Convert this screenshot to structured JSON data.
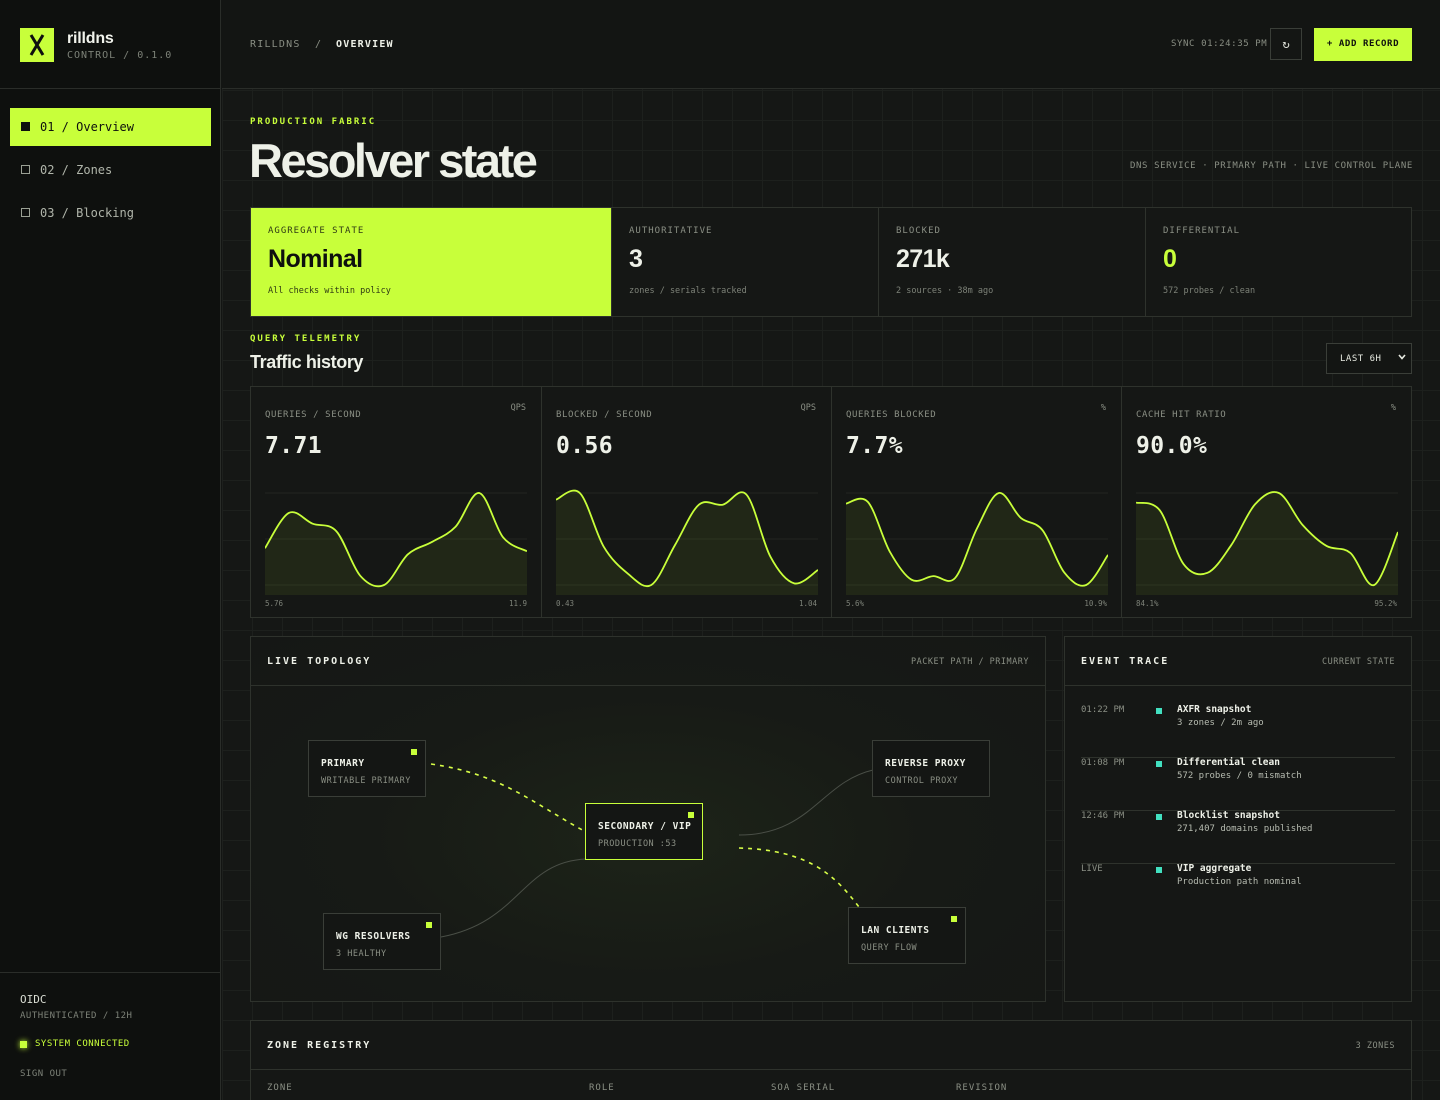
{
  "brand": {
    "name": "rilldns",
    "sub": "CONTROL / 0.1.0"
  },
  "nav": [
    {
      "label": "01 / Overview",
      "active": true
    },
    {
      "label": "02 / Zones",
      "active": false
    },
    {
      "label": "03 / Blocking",
      "active": false
    }
  ],
  "session": {
    "provider": "OIDC",
    "auth": "AUTHENTICATED / 12H",
    "status": "SYSTEM CONNECTED",
    "signout": "SIGN OUT"
  },
  "topbar": {
    "crumbs": [
      "RILLDNS",
      "/",
      "OVERVIEW"
    ],
    "sync": "SYNC 01:24:35 PM",
    "refresh_icon": "↻",
    "add_label": "+ ADD RECORD"
  },
  "header": {
    "eyebrow": "PRODUCTION FABRIC",
    "title": "Resolver state",
    "subtitle": "DNS SERVICE · PRIMARY PATH · LIVE CONTROL PLANE"
  },
  "stats": [
    {
      "label": "AGGREGATE STATE",
      "value": "Nominal",
      "note": "All checks within policy"
    },
    {
      "label": "AUTHORITATIVE",
      "value": "3",
      "note": "zones / serials tracked"
    },
    {
      "label": "BLOCKED",
      "value": "271k",
      "note": "2 sources · 38m ago"
    },
    {
      "label": "DIFFERENTIAL",
      "value": "0",
      "note": "572 probes / clean"
    }
  ],
  "telemetry": {
    "eyebrow": "QUERY TELEMETRY",
    "title": "Traffic history",
    "range": "LAST 6H",
    "panels": [
      {
        "label": "QUERIES / SECOND",
        "unit": "QPS",
        "value": "7.71",
        "min": "5.76",
        "max": "11.9",
        "series": [
          8.3,
          10.6,
          9.9,
          9.4,
          6.5,
          5.9,
          7.9,
          8.7,
          9.7,
          11.9,
          9.0,
          8.1
        ]
      },
      {
        "label": "BLOCKED / SECOND",
        "unit": "QPS",
        "value": "0.56",
        "min": "0.43",
        "max": "1.04",
        "series": [
          0.96,
          1.0,
          0.68,
          0.52,
          0.45,
          0.69,
          0.93,
          0.93,
          0.99,
          0.62,
          0.46,
          0.54
        ]
      },
      {
        "label": "QUERIES BLOCKED",
        "unit": "%",
        "value": "7.7%",
        "min": "5.6%",
        "max": "10.9%",
        "series": [
          10.3,
          10.4,
          7.6,
          6.0,
          6.2,
          6.1,
          8.9,
          10.9,
          9.5,
          8.8,
          6.4,
          5.7,
          7.4
        ]
      },
      {
        "label": "CACHE HIT RATIO",
        "unit": "%",
        "value": "90.0%",
        "min": "84.1%",
        "max": "95.2%",
        "series": [
          94.1,
          93.2,
          87.0,
          86.0,
          89.2,
          93.9,
          95.2,
          91.5,
          89.1,
          88.3,
          84.6,
          90.7
        ]
      }
    ]
  },
  "topology": {
    "title": "LIVE TOPOLOGY",
    "meta": "PACKET PATH / PRIMARY",
    "nodes": [
      {
        "title": "PRIMARY",
        "sub": "WRITABLE PRIMARY"
      },
      {
        "title": "SECONDARY / VIP",
        "sub": "PRODUCTION :53"
      },
      {
        "title": "REVERSE PROXY",
        "sub": "CONTROL PROXY"
      },
      {
        "title": "WG RESOLVERS",
        "sub": "3 HEALTHY"
      },
      {
        "title": "LAN CLIENTS",
        "sub": "QUERY FLOW"
      }
    ]
  },
  "events": {
    "title": "EVENT TRACE",
    "meta": "CURRENT STATE",
    "items": [
      {
        "time": "01:22 PM",
        "head": "AXFR snapshot",
        "detail": "3 zones / 2m ago"
      },
      {
        "time": "01:08 PM",
        "head": "Differential clean",
        "detail": "572 probes / 0 mismatch"
      },
      {
        "time": "12:46 PM",
        "head": "Blocklist snapshot",
        "detail": "271,407 domains published"
      },
      {
        "time": "LIVE",
        "head": "VIP aggregate",
        "detail": "Production path nominal"
      }
    ]
  },
  "registry": {
    "title": "ZONE REGISTRY",
    "meta": "3 ZONES",
    "columns": [
      "ZONE",
      "ROLE",
      "SOA SERIAL",
      "REVISION"
    ]
  },
  "colors": {
    "accent": "#c8ff3a",
    "event": "#42e0c0",
    "bg": "#151715"
  }
}
